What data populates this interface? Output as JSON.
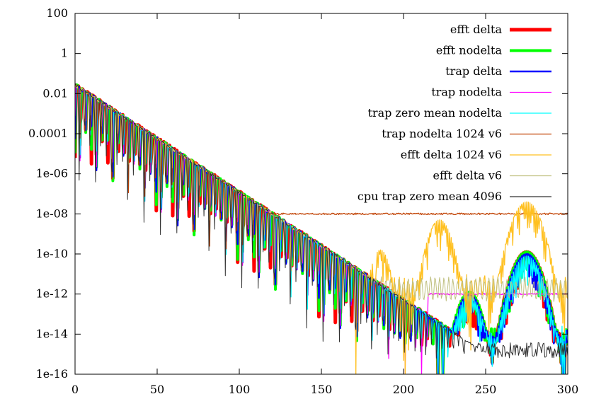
{
  "chart_data": {
    "type": "line",
    "title": "",
    "xlabel": "",
    "ylabel": "",
    "xlim": [
      0,
      300
    ],
    "y_scale": "log",
    "ylim": [
      1e-16,
      100
    ],
    "x_ticks": [
      {
        "value": 0,
        "label": "0"
      },
      {
        "value": 50,
        "label": "50"
      },
      {
        "value": 100,
        "label": "100"
      },
      {
        "value": 150,
        "label": "150"
      },
      {
        "value": 200,
        "label": "200"
      },
      {
        "value": 250,
        "label": "250"
      },
      {
        "value": 300,
        "label": "300"
      }
    ],
    "y_ticks": [
      {
        "value": 100,
        "label": "100"
      },
      {
        "value": 1,
        "label": "1"
      },
      {
        "value": 0.01,
        "label": "0.01"
      },
      {
        "value": 0.0001,
        "label": "0.0001"
      },
      {
        "value": 1e-06,
        "label": "1e-06"
      },
      {
        "value": 1e-08,
        "label": "1e-08"
      },
      {
        "value": 1e-10,
        "label": "1e-10"
      },
      {
        "value": 1e-12,
        "label": "1e-12"
      },
      {
        "value": 1e-14,
        "label": "1e-14"
      },
      {
        "value": 1e-16,
        "label": "1e-16"
      }
    ],
    "legend_position": "top-right",
    "series": [
      {
        "name": "efft delta",
        "color": "#ff0000",
        "kind": "decay",
        "floor_exp": -14.0,
        "bumps": [
          [
            240,
            -12.0,
            5
          ],
          [
            275,
            -9.9,
            6
          ]
        ]
      },
      {
        "name": "efft nodelta",
        "color": "#00ff00",
        "kind": "decay",
        "floor_exp": -13.9,
        "bumps": [
          [
            240,
            -11.9,
            5
          ],
          [
            275,
            -9.9,
            6
          ]
        ]
      },
      {
        "name": "trap delta",
        "color": "#0000ff",
        "kind": "decay",
        "floor_exp": -13.9,
        "bumps": [
          [
            240,
            -12.0,
            5
          ],
          [
            275,
            -10.0,
            6
          ]
        ]
      },
      {
        "name": "trap nodelta",
        "color": "#ff00ff",
        "kind": "plateau",
        "plateau_exp": -12.0,
        "plateau_start": 215
      },
      {
        "name": "trap zero mean nodelta",
        "color": "#00ffff",
        "kind": "decay",
        "floor_exp": -13.8,
        "bumps": [
          [
            240,
            -12.1,
            5
          ],
          [
            275,
            -10.1,
            6
          ]
        ]
      },
      {
        "name": "trap nodelta 1024 v6",
        "color": "#c04000",
        "kind": "plateau",
        "plateau_exp": -8.0,
        "plateau_start": 110
      },
      {
        "name": "efft delta 1024 v6",
        "color": "#ffc020",
        "kind": "oscillating",
        "floor_exp": -11.2,
        "bumps": [
          [
            186,
            -9.8,
            4
          ],
          [
            222,
            -8.3,
            5
          ],
          [
            275,
            -7.4,
            6
          ]
        ]
      },
      {
        "name": "efft delta v6",
        "color": "#c0c080",
        "kind": "oscillating",
        "floor_exp": -11.3,
        "bumps": []
      },
      {
        "name": "cpu trap zero mean 4096",
        "color": "#303030",
        "kind": "decay",
        "floor_exp": -14.6,
        "bumps": []
      }
    ]
  }
}
